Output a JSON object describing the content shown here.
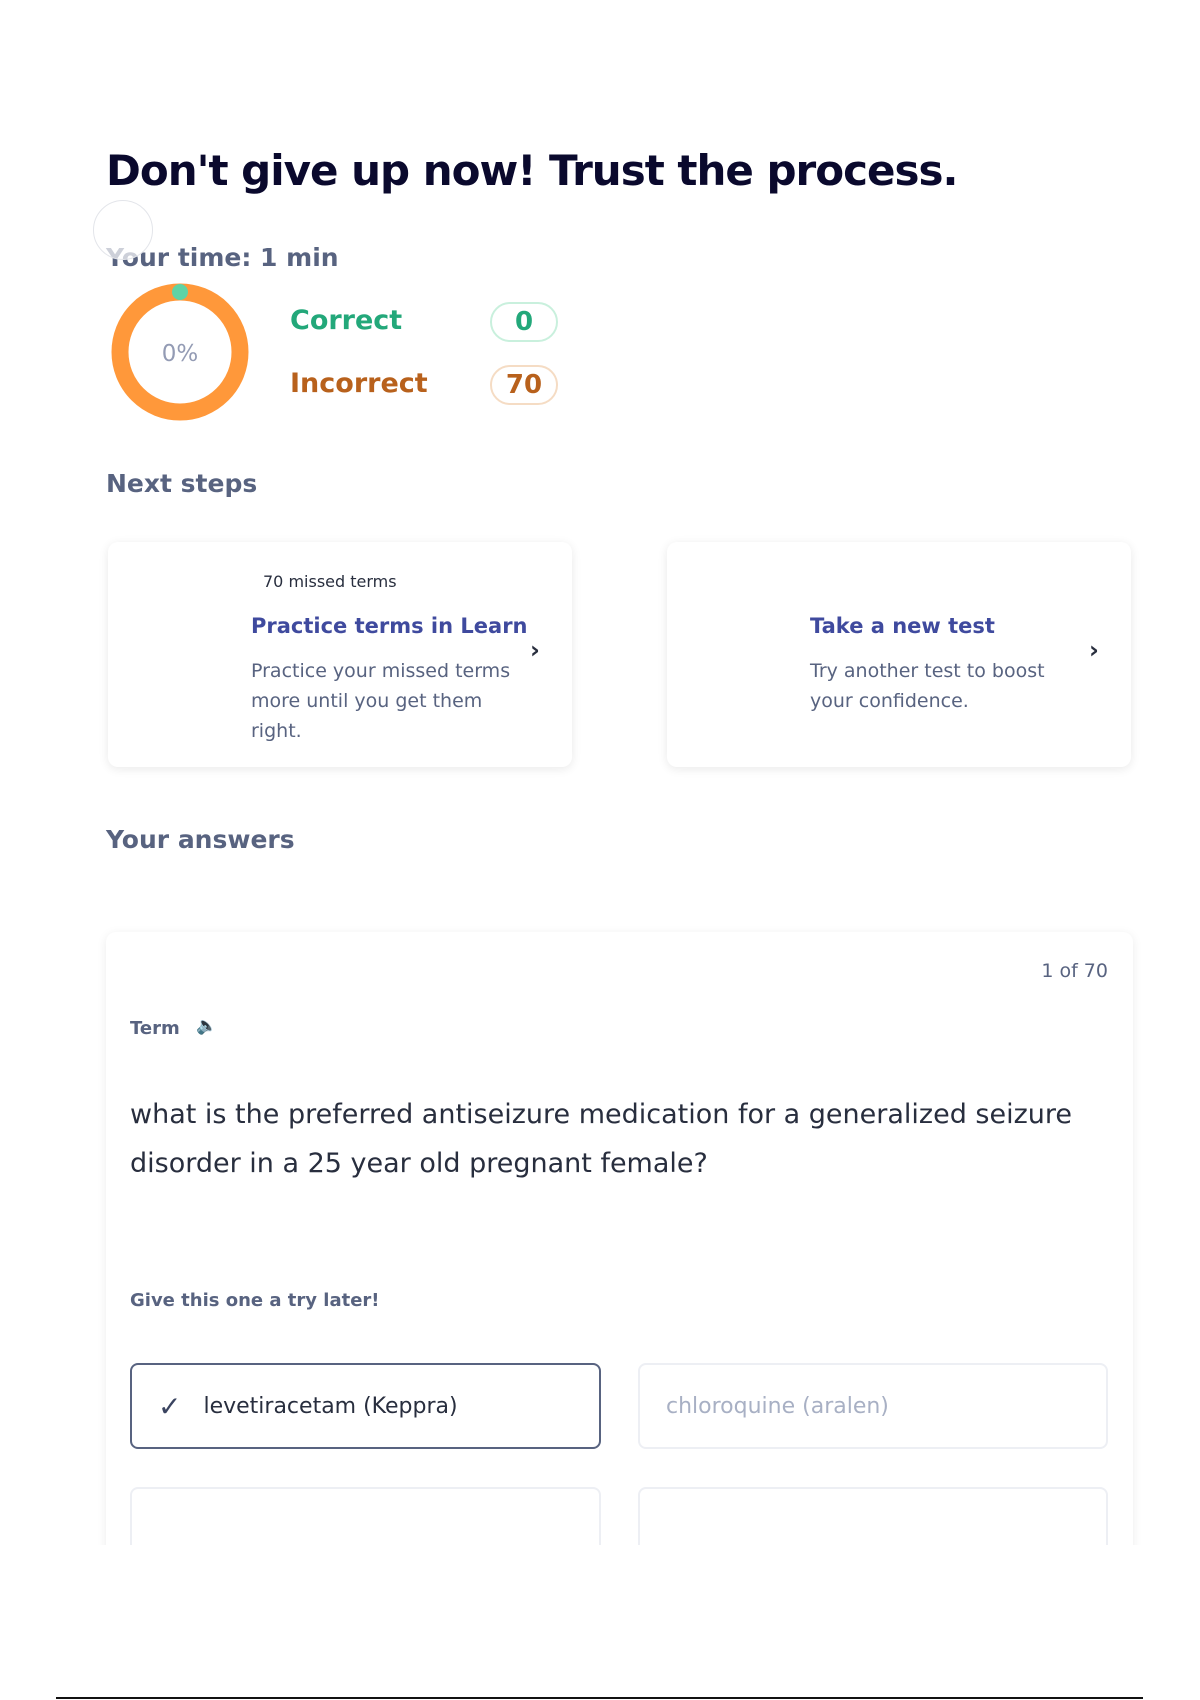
{
  "header": {
    "title": "Don't give up now! Trust the process.",
    "time": "Your time: 1 min"
  },
  "score": {
    "percent_label": "0%",
    "percent": 0,
    "correct_label": "Correct",
    "correct_count": "0",
    "incorrect_label": "Incorrect",
    "incorrect_count": "70",
    "colors": {
      "correct": "#23b26d",
      "incorrect": "#ff983a",
      "incorrect_text": "#b8611c"
    }
  },
  "next_steps": {
    "heading": "Next steps",
    "cards": [
      {
        "eyebrow": "70 missed terms",
        "title": "Practice terms in Learn",
        "desc": "Practice your missed terms more until you get them right."
      },
      {
        "title": "Take a new test",
        "desc": "Try another test to boost your confidence."
      }
    ]
  },
  "answers": {
    "heading": "Your answers",
    "counter": "1 of 70",
    "term_label": "Term",
    "question": "what is the preferred antiseizure medication for a generalized seizure disorder in a 25 year old pregnant female?",
    "feedback": "Give this one a try later!",
    "options": [
      "levetiracetam (Keppra)",
      "chloroquine (aralen)"
    ]
  }
}
